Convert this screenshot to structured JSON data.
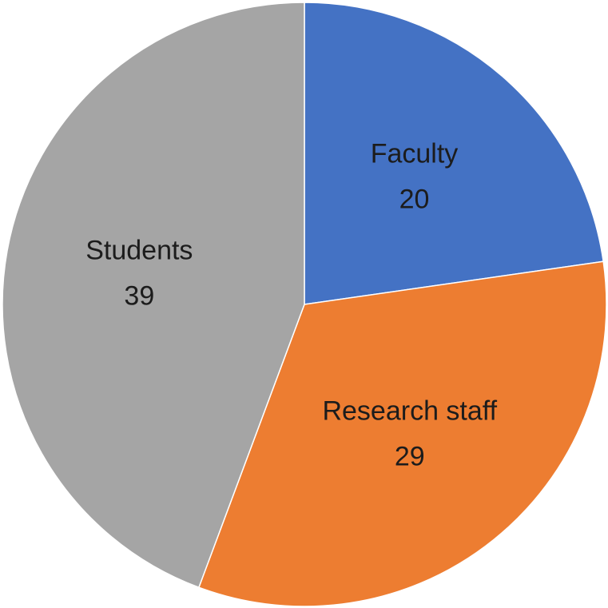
{
  "chart_data": {
    "type": "pie",
    "categories": [
      "Faculty",
      "Research staff",
      "Students"
    ],
    "values": [
      20,
      29,
      39
    ],
    "colors": [
      "#4472c4",
      "#ed7d31",
      "#a5a5a5"
    ]
  }
}
